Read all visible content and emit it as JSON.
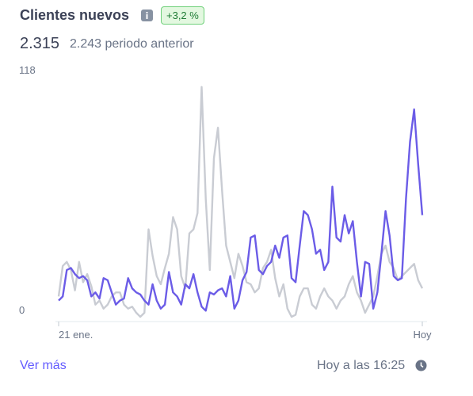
{
  "header": {
    "title": "Clientes nuevos",
    "badge": "+3,2 %"
  },
  "summary": {
    "total": "2.315",
    "previous": "2.243 periodo anterior"
  },
  "chart_data": {
    "type": "line",
    "categories": [
      "21 ene.",
      null,
      null,
      null,
      null,
      null,
      null,
      null,
      null,
      null,
      null,
      null,
      null,
      null,
      null,
      null,
      null,
      null,
      null,
      null,
      null,
      null,
      null,
      null,
      null,
      null,
      null,
      null,
      null,
      null,
      null,
      null,
      null,
      null,
      null,
      null,
      null,
      null,
      null,
      null,
      null,
      null,
      null,
      null,
      null,
      null,
      null,
      null,
      null,
      null,
      null,
      null,
      null,
      null,
      null,
      null,
      null,
      null,
      null,
      null,
      null,
      null,
      null,
      null,
      null,
      null,
      null,
      null,
      null,
      null,
      null,
      null,
      null,
      null,
      null,
      null,
      null,
      null,
      null,
      null,
      null,
      null,
      null,
      null,
      null,
      null,
      null,
      null,
      null,
      "Hoy"
    ],
    "ylim": [
      0,
      118
    ],
    "yticks": [
      0,
      118
    ],
    "series": [
      {
        "color": "#c9ccd3",
        "values": [
          10,
          25,
          27,
          23,
          13,
          27,
          17,
          21,
          15,
          6,
          8,
          4,
          6,
          10,
          12,
          12,
          6,
          4,
          5,
          2,
          0,
          2,
          43,
          30,
          20,
          16,
          24,
          31,
          49,
          43,
          20,
          14,
          41,
          43,
          51,
          113,
          58,
          23,
          78,
          93,
          62,
          35,
          27,
          19,
          31,
          25,
          17,
          16,
          12,
          14,
          24,
          27,
          33,
          19,
          10,
          16,
          4,
          0,
          1,
          10,
          14,
          14,
          6,
          4,
          10,
          14,
          10,
          8,
          4,
          8,
          10,
          16,
          20,
          12,
          8,
          2,
          6,
          10,
          20,
          31,
          35,
          27,
          24,
          18,
          20,
          22,
          24,
          26,
          18,
          14
        ]
      },
      {
        "color": "#6b5ce7",
        "values": [
          8,
          10,
          23,
          24,
          21,
          19,
          20,
          18,
          10,
          12,
          9,
          19,
          18,
          12,
          6,
          8,
          9,
          19,
          14,
          12,
          11,
          8,
          6,
          16,
          8,
          4,
          6,
          22,
          12,
          10,
          6,
          16,
          14,
          21,
          12,
          5,
          3,
          12,
          11,
          13,
          14,
          10,
          20,
          4,
          8,
          18,
          22,
          39,
          40,
          23,
          21,
          25,
          27,
          35,
          29,
          39,
          40,
          19,
          17,
          35,
          52,
          50,
          43,
          31,
          33,
          23,
          27,
          64,
          39,
          37,
          50,
          41,
          47,
          27,
          10,
          27,
          26,
          4,
          12,
          31,
          52,
          40,
          20,
          18,
          19,
          58,
          86,
          102,
          75,
          50
        ]
      }
    ]
  },
  "footer": {
    "link": "Ver más",
    "updated": "Hoy a las 16:25"
  }
}
